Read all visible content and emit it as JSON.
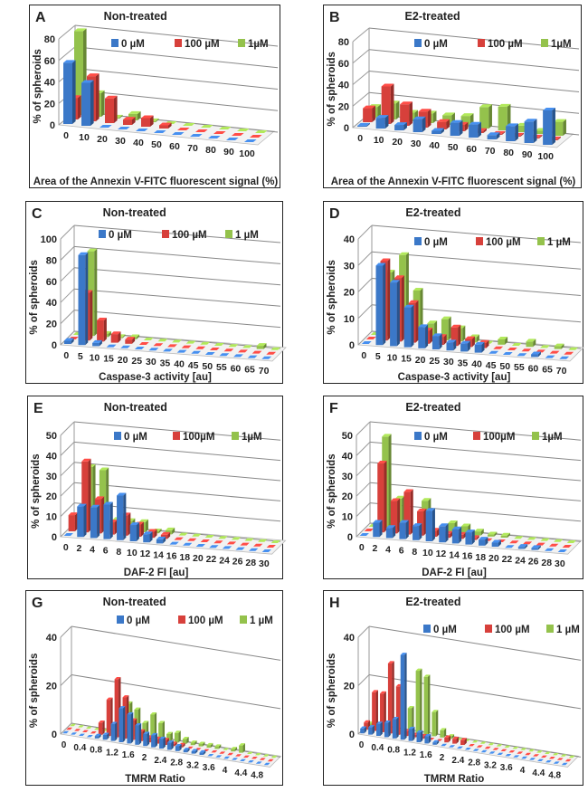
{
  "colors": {
    "series": [
      "#3b78c8",
      "#d7403b",
      "#94c24c"
    ]
  },
  "chart_data": [
    {
      "type": "bar",
      "subtype": "3d-column",
      "letter": "A",
      "title": "Non-treated",
      "ylabel": "% of spheroids",
      "xlabel": "Area of the Annexin V-FITC fluorescent signal (%)",
      "ylim": [
        0,
        80
      ],
      "yticks": [
        "0",
        "20",
        "40",
        "60",
        "80"
      ],
      "grid": true,
      "legend": "top",
      "categories": [
        "0",
        "10",
        "20",
        "30",
        "40",
        "50",
        "60",
        "70",
        "80",
        "90",
        "100"
      ],
      "tick_labels": [
        "0",
        "10",
        "20",
        "30",
        "40",
        "50",
        "60",
        "70",
        "80",
        "90",
        "100"
      ],
      "series": [
        {
          "name": "0 µM",
          "values": [
            57,
            40,
            0,
            0,
            0,
            0,
            0,
            0,
            0,
            0,
            0
          ]
        },
        {
          "name": "100 µM",
          "values": [
            20,
            42,
            23,
            5,
            8,
            3,
            0,
            0,
            0,
            0,
            0
          ]
        },
        {
          "name": "1µM",
          "values": [
            78,
            22,
            1,
            6,
            1,
            0,
            0,
            0,
            0,
            0,
            0
          ]
        }
      ]
    },
    {
      "type": "bar",
      "subtype": "3d-column",
      "letter": "B",
      "title": "E2-treated",
      "ylabel": "% of spheroids",
      "xlabel": "Area of the Annexin V-FITC fluorescent signal (%)",
      "ylim": [
        0,
        80
      ],
      "yticks": [
        "0",
        "20",
        "40",
        "60",
        "80"
      ],
      "grid": true,
      "legend": "top",
      "categories": [
        "0",
        "10",
        "20",
        "30",
        "40",
        "50",
        "60",
        "70",
        "80",
        "90",
        "100"
      ],
      "tick_labels": [
        "0",
        "10",
        "20",
        "30",
        "40",
        "50",
        "60",
        "70",
        "80",
        "90",
        "100"
      ],
      "series": [
        {
          "name": "0 µM",
          "values": [
            1,
            10,
            5,
            12,
            3,
            12,
            12,
            4,
            14,
            20,
            32
          ]
        },
        {
          "name": "100 µM",
          "values": [
            13,
            35,
            20,
            15,
            7,
            6,
            2,
            1,
            1,
            1,
            1
          ]
        },
        {
          "name": "1µM",
          "values": [
            10,
            15,
            8,
            9,
            9,
            10,
            20,
            22,
            6,
            3,
            13
          ]
        }
      ]
    },
    {
      "type": "bar",
      "subtype": "3d-column",
      "letter": "C",
      "title": "Non-treated",
      "ylabel": "% of spheroids",
      "xlabel": "Caspase-3 activity [au]",
      "ylim": [
        0,
        100
      ],
      "yticks": [
        "0",
        "20",
        "40",
        "60",
        "80",
        "100"
      ],
      "grid": true,
      "legend": "top",
      "categories": [
        "0",
        "5",
        "10",
        "15",
        "20",
        "25",
        "30",
        "35",
        "40",
        "45",
        "50",
        "55",
        "60",
        "65",
        "70"
      ],
      "tick_labels": [
        "0",
        "5",
        "10",
        "15",
        "20",
        "25",
        "30",
        "35",
        "40",
        "45",
        "50",
        "55",
        "60",
        "65",
        "70"
      ],
      "series": [
        {
          "name": "0 µM",
          "values": [
            3,
            85,
            3,
            0,
            0,
            0,
            0,
            0,
            0,
            0,
            0,
            0,
            0,
            0,
            0
          ]
        },
        {
          "name": "100 µM",
          "values": [
            0,
            45,
            20,
            8,
            4,
            0,
            0,
            0,
            0,
            0,
            0,
            0,
            0,
            0,
            0
          ]
        },
        {
          "name": "1 µM",
          "values": [
            0,
            80,
            3,
            1,
            2,
            0,
            0,
            0,
            0,
            0,
            0,
            0,
            0,
            3,
            0
          ]
        }
      ]
    },
    {
      "type": "bar",
      "subtype": "3d-column",
      "letter": "D",
      "title": "E2-treated",
      "ylabel": "% of spheroids",
      "xlabel": "Caspase-3 activity [au]",
      "ylim": [
        0,
        40
      ],
      "yticks": [
        "0",
        "10",
        "20",
        "30",
        "40"
      ],
      "grid": true,
      "legend": "top",
      "categories": [
        "0",
        "5",
        "10",
        "15",
        "20",
        "25",
        "30",
        "35",
        "40",
        "45",
        "50",
        "55",
        "60",
        "65",
        "70"
      ],
      "tick_labels": [
        "0",
        "5",
        "10",
        "15",
        "20",
        "25",
        "30",
        "35",
        "40",
        "45",
        "50",
        "55",
        "60",
        "65",
        "70"
      ],
      "series": [
        {
          "name": "0 µM",
          "values": [
            0,
            30,
            24,
            15,
            8,
            5,
            3,
            3,
            3,
            0,
            0,
            0,
            1,
            0,
            0
          ]
        },
        {
          "name": "100 µM",
          "values": [
            0,
            30,
            24,
            15,
            5,
            3,
            7,
            3,
            2,
            0,
            0,
            0,
            0,
            0,
            0
          ]
        },
        {
          "name": "1 µM",
          "values": [
            0,
            24,
            31,
            18,
            6,
            8,
            5,
            2,
            0,
            2,
            0,
            2,
            0,
            1,
            0
          ]
        }
      ]
    },
    {
      "type": "bar",
      "subtype": "3d-column",
      "letter": "E",
      "title": "Non-treated",
      "ylabel": "% of spheroids",
      "xlabel": "DAF-2 FI [au]",
      "ylim": [
        0,
        50
      ],
      "yticks": [
        "0",
        "10",
        "20",
        "30",
        "40",
        "50"
      ],
      "grid": true,
      "legend": "top",
      "categories": [
        "0",
        "2",
        "4",
        "6",
        "8",
        "10",
        "12",
        "14",
        "16",
        "18",
        "20",
        "22",
        "24",
        "26",
        "28",
        "30"
      ],
      "tick_labels": [
        "0",
        "2",
        "4",
        "6",
        "8",
        "10",
        "12",
        "14",
        "16",
        "18",
        "20",
        "22",
        "24",
        "26",
        "28",
        "30"
      ],
      "series": [
        {
          "name": "0 µM",
          "values": [
            0,
            15,
            15,
            17,
            22,
            8,
            4,
            2,
            0,
            0,
            0,
            0,
            0,
            0,
            0,
            0
          ]
        },
        {
          "name": "100µM",
          "values": [
            8,
            35,
            17,
            6,
            10,
            6,
            3,
            2,
            0,
            0,
            0,
            0,
            0,
            0,
            0,
            0
          ]
        },
        {
          "name": "1µM",
          "values": [
            0,
            30,
            29,
            5,
            5,
            5,
            1,
            2,
            0,
            0,
            0,
            0,
            0,
            0,
            0,
            0
          ]
        }
      ]
    },
    {
      "type": "bar",
      "subtype": "3d-column",
      "letter": "F",
      "title": "E2-treated",
      "ylabel": "% of  spheroids",
      "xlabel": "DAF-2 FI [au]",
      "ylim": [
        0,
        50
      ],
      "yticks": [
        "0",
        "10",
        "20",
        "30",
        "40",
        "50"
      ],
      "grid": true,
      "legend": "top",
      "categories": [
        "0",
        "2",
        "4",
        "6",
        "8",
        "10",
        "12",
        "14",
        "16",
        "18",
        "20",
        "22",
        "24",
        "26",
        "28",
        "30"
      ],
      "tick_labels": [
        "0",
        "2",
        "4",
        "6",
        "8",
        "10",
        "12",
        "14",
        "16",
        "18",
        "20",
        "22",
        "24",
        "26",
        "28",
        "30"
      ],
      "series": [
        {
          "name": "0 µM",
          "values": [
            0,
            7,
            5,
            8,
            7,
            15,
            8,
            7,
            6,
            3,
            2,
            0,
            1,
            1,
            0,
            0
          ]
        },
        {
          "name": "100µM",
          "values": [
            0,
            34,
            16,
            21,
            12,
            3,
            2,
            2,
            1,
            0,
            0,
            0,
            0,
            0,
            0,
            0
          ]
        },
        {
          "name": "1µM",
          "values": [
            0,
            45,
            15,
            0,
            15,
            0,
            5,
            4,
            2,
            1,
            1,
            0,
            0,
            0,
            0,
            0
          ]
        }
      ]
    },
    {
      "type": "bar",
      "subtype": "3d-column",
      "letter": "G",
      "title": "Non-treated",
      "ylabel": "% of spheroids",
      "xlabel": "TMRM Ratio",
      "ylim": [
        0,
        40
      ],
      "yticks": [
        "0",
        "20",
        "40"
      ],
      "grid": true,
      "legend": "top",
      "x": [
        0,
        0.2,
        0.4,
        0.6,
        0.8,
        1.0,
        1.2,
        1.4,
        1.6,
        1.8,
        2.0,
        2.2,
        2.4,
        2.6,
        2.8,
        3.0,
        3.2,
        3.4,
        3.6,
        3.8,
        4.0,
        4.2,
        4.4,
        4.6,
        4.8,
        5.0
      ],
      "tick_labels": [
        "0",
        "0.4",
        "0.8",
        "1.2",
        "1.6",
        "2",
        "2.4",
        "2.8",
        "3.2",
        "3.6",
        "4",
        "4.4",
        "4.8"
      ],
      "series": [
        {
          "name": "0 µM",
          "values": [
            0,
            0,
            0,
            0,
            1,
            2,
            7,
            14,
            12,
            8,
            5,
            5,
            4,
            3,
            2,
            1,
            1,
            1,
            0,
            0,
            0,
            0,
            0,
            0,
            0,
            0
          ]
        },
        {
          "name": "100 µM",
          "values": [
            0,
            0,
            0,
            0,
            5,
            15,
            24,
            17,
            8,
            4,
            2,
            2,
            2,
            1,
            1,
            0,
            0,
            0,
            0,
            0,
            0,
            0,
            0,
            0,
            0,
            0
          ]
        },
        {
          "name": "1 µM",
          "values": [
            0,
            0,
            0,
            0,
            0,
            0,
            0,
            13,
            11,
            6,
            10,
            7,
            3,
            4,
            2,
            1,
            1,
            1,
            1,
            0,
            1,
            3,
            0,
            0,
            0,
            0
          ]
        }
      ]
    },
    {
      "type": "bar",
      "subtype": "3d-column",
      "letter": "H",
      "title": "E2-treated",
      "ylabel": "% of spheroids",
      "xlabel": "TMRM Ratio",
      "ylim": [
        0,
        40
      ],
      "yticks": [
        "0",
        "20",
        "40"
      ],
      "grid": true,
      "legend": "top",
      "x": [
        0,
        0.2,
        0.4,
        0.6,
        0.8,
        1.0,
        1.2,
        1.4,
        1.6,
        1.8,
        2.0,
        2.2,
        2.4,
        2.6,
        2.8,
        3.0,
        3.2,
        3.4,
        3.6,
        3.8,
        4.0,
        4.2,
        4.4,
        4.6,
        4.8,
        5.0
      ],
      "tick_labels": [
        "0",
        "0.4",
        "0.8",
        "1.2",
        "1.6",
        "2",
        "2.4",
        "2.8",
        "3.2",
        "3.6",
        "4",
        "4.4",
        "4.8"
      ],
      "series": [
        {
          "name": "0 µM",
          "values": [
            2,
            3,
            5,
            6,
            8,
            35,
            5,
            4,
            3,
            1,
            0,
            0,
            0,
            0,
            0,
            0,
            0,
            0,
            0,
            0,
            0,
            0,
            0,
            0,
            0,
            0
          ]
        },
        {
          "name": "100 µM",
          "values": [
            3,
            16,
            16,
            29,
            20,
            2,
            1,
            1,
            0,
            0,
            2,
            2,
            2,
            0,
            0,
            0,
            0,
            0,
            0,
            0,
            0,
            0,
            0,
            0,
            0,
            0
          ]
        },
        {
          "name": "1 µM",
          "values": [
            1,
            0,
            0,
            0,
            0,
            10,
            26,
            24,
            10,
            3,
            1,
            0,
            0,
            0,
            0,
            0,
            0,
            0,
            0,
            0,
            0,
            0,
            0,
            0,
            0,
            0
          ]
        }
      ]
    }
  ]
}
